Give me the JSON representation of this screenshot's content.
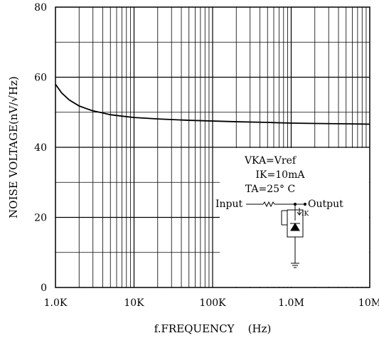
{
  "chart_data": {
    "type": "line",
    "xlabel": "f.FREQUENCY    (Hz)",
    "ylabel": "NOISE  VOLTAGE(nV/√Hz)",
    "x_scale": "log",
    "xlim": [
      1000,
      10000000
    ],
    "ylim": [
      0,
      80
    ],
    "grid": true,
    "x_ticks": [
      {
        "value": 1000,
        "label": "1.0K"
      },
      {
        "value": 10000,
        "label": "10K"
      },
      {
        "value": 100000,
        "label": "100K"
      },
      {
        "value": 1000000,
        "label": "1.0M"
      },
      {
        "value": 10000000,
        "label": "10M"
      }
    ],
    "y_ticks": [
      {
        "value": 0,
        "label": "0"
      },
      {
        "value": 20,
        "label": "20"
      },
      {
        "value": 40,
        "label": "40"
      },
      {
        "value": 60,
        "label": "60"
      },
      {
        "value": 80,
        "label": "80"
      }
    ],
    "series": [
      {
        "x": [
          1000,
          1200,
          1500,
          2000,
          2500,
          3000,
          4000,
          5000,
          7000,
          10000,
          20000,
          50000,
          100000,
          200000,
          500000,
          1000000,
          2000000,
          5000000,
          10000000
        ],
        "y": [
          58,
          55.5,
          53.5,
          51.8,
          51,
          50.4,
          49.8,
          49.3,
          48.9,
          48.5,
          48.1,
          47.7,
          47.5,
          47.3,
          47.1,
          46.9,
          46.8,
          46.7,
          46.6
        ]
      }
    ],
    "annotation": {
      "conditions": [
        "VKA=Vref",
        "IK=10mA",
        "TA=25° C"
      ],
      "input_label": "Input",
      "output_label": "Output",
      "current_label": "IK"
    }
  }
}
